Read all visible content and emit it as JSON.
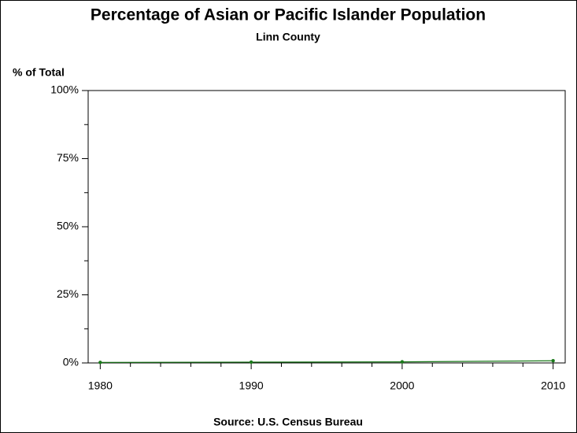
{
  "chart_data": {
    "type": "line",
    "title": "Percentage of Asian or Pacific Islander Population",
    "subtitle": "Linn County",
    "ylabel": "% of Total",
    "source": "Source: U.S. Census Bureau",
    "x": [
      1980,
      1990,
      2000,
      2010
    ],
    "series": [
      {
        "name": "Asian or Pacific Islander",
        "color": "#1a7a1a",
        "values": [
          0.2,
          0.3,
          0.4,
          0.8
        ]
      }
    ],
    "xlim": [
      1979.2,
      2010.8
    ],
    "xticks": [
      1980,
      1990,
      2000,
      2010
    ],
    "xminorticks": [
      1982,
      1984,
      1986,
      1988,
      1992,
      1994,
      1996,
      1998,
      2002,
      2004,
      2006,
      2008
    ],
    "ylim": [
      0,
      100
    ],
    "yticks": [
      {
        "value": 0,
        "label": "0%"
      },
      {
        "value": 25,
        "label": "25%"
      },
      {
        "value": 50,
        "label": "50%"
      },
      {
        "value": 75,
        "label": "75%"
      },
      {
        "value": 100,
        "label": "100%"
      }
    ],
    "yminorticks": [
      12.5,
      37.5,
      62.5,
      87.5
    ]
  }
}
